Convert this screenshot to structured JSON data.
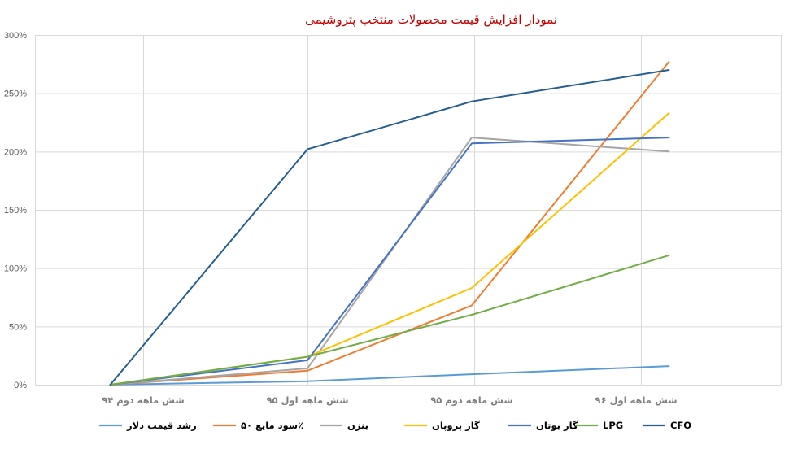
{
  "chart_data": {
    "type": "line",
    "title": "نمودار افزایش قیمت محصولات منتخب پتروشیمی",
    "xlabel": "",
    "ylabel": "",
    "categories": [
      "شش ماهه دوم ۹۴",
      "شش ماهه اول ۹۵",
      "شش ماهه دوم ۹۵",
      "شش ماهه اول ۹۶"
    ],
    "x": [
      0,
      1,
      2,
      3
    ],
    "ylim": [
      0,
      300
    ],
    "yticks": [
      0,
      50,
      100,
      150,
      200,
      250,
      300
    ],
    "ytick_labels": [
      "0%",
      "50%",
      "100%",
      "150%",
      "200%",
      "250%",
      "300%"
    ],
    "grid": true,
    "legend_position": "bottom",
    "series": [
      {
        "name": "رشد قیمت دلار",
        "color": "#5b9bd5",
        "x": [
          -0.2,
          1,
          2,
          3.2
        ],
        "values": [
          0,
          3,
          9,
          16
        ]
      },
      {
        "name": "سود مایع ۵۰٪",
        "color": "#ed7d31",
        "x": [
          -0.2,
          1,
          2,
          3.2
        ],
        "values": [
          0,
          12,
          68,
          277
        ]
      },
      {
        "name": "بنزن",
        "color": "#a5a5a5",
        "x": [
          -0.2,
          1,
          2,
          3.2
        ],
        "values": [
          0,
          14,
          212,
          200
        ]
      },
      {
        "name": "گاز پروپان",
        "color": "#ffc000",
        "x": [
          -0.2,
          1,
          2,
          3.2
        ],
        "values": [
          0,
          24,
          83,
          233
        ]
      },
      {
        "name": "گاز بوتان",
        "color": "#4472c4",
        "x": [
          -0.2,
          1,
          2,
          3.2
        ],
        "values": [
          0,
          21,
          207,
          212
        ]
      },
      {
        "name": "LPG",
        "color": "#70ad47",
        "x": [
          -0.2,
          1,
          2,
          3.2
        ],
        "values": [
          0,
          24,
          60,
          111
        ]
      },
      {
        "name": "CFO",
        "color": "#255e91",
        "x": [
          -0.2,
          1,
          2,
          3.2
        ],
        "values": [
          0,
          202,
          243,
          270
        ]
      }
    ]
  }
}
